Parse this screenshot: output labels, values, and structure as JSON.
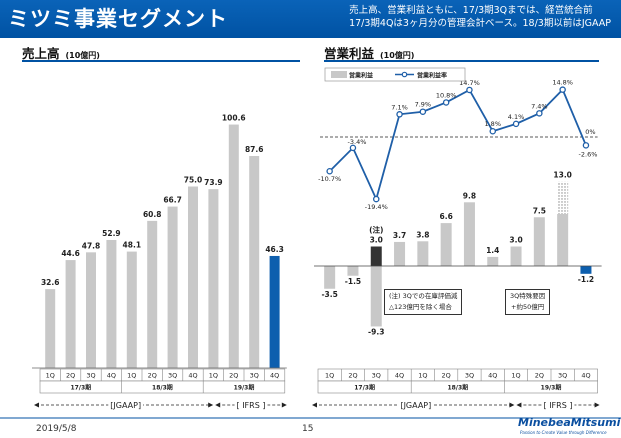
{
  "header": {
    "title": "ミツミ事業セグメント",
    "note_line1": "売上高、営業利益ともに、17/3期3Qまでは、経営統合前",
    "note_line2": "17/3期4Qは3ヶ月分の管理会計ベース。18/3期以前はJGAAP"
  },
  "colors": {
    "header": "#0052a3",
    "gray_bar": "#c8c8c8",
    "blue_bar": "#0d5fae",
    "black_bar": "#333333",
    "line": "#1f5fa8"
  },
  "quarters": [
    "1Q",
    "2Q",
    "3Q",
    "4Q",
    "1Q",
    "2Q",
    "3Q",
    "4Q",
    "1Q",
    "2Q",
    "3Q",
    "4Q"
  ],
  "years": [
    "17/3期",
    "18/3期",
    "19/3期"
  ],
  "standards": {
    "jgaap": "[JGAAP]",
    "ifrs": "[ IFRS ]"
  },
  "chart_data": [
    {
      "type": "bar",
      "title": "売上高",
      "unit": "(10億円)",
      "categories": [
        "17/3 1Q",
        "17/3 2Q",
        "17/3 3Q",
        "17/3 4Q",
        "18/3 1Q",
        "18/3 2Q",
        "18/3 3Q",
        "18/3 4Q",
        "19/3 1Q",
        "19/3 2Q",
        "19/3 3Q",
        "19/3 4Q"
      ],
      "values": [
        32.6,
        44.6,
        47.8,
        52.9,
        48.1,
        60.8,
        66.7,
        75.0,
        73.9,
        100.6,
        87.6,
        46.3
      ],
      "value_labels": [
        "32.6",
        "44.6",
        "47.8",
        "52.9",
        "48.1",
        "60.8",
        "66.7",
        "75.0",
        "73.9",
        "100.6",
        "87.6",
        "46.3"
      ],
      "highlight_index": 11,
      "ylim": [
        0,
        105
      ]
    },
    {
      "type": "bar+line",
      "title": "営業利益",
      "unit": "(10億円)",
      "legend": [
        "営業利益",
        "営業利益率"
      ],
      "categories": [
        "17/3 1Q",
        "17/3 2Q",
        "17/3 3Q",
        "17/3 4Q",
        "18/3 1Q",
        "18/3 2Q",
        "18/3 3Q",
        "18/3 4Q",
        "19/3 1Q",
        "19/3 2Q",
        "19/3 3Q",
        "19/3 4Q"
      ],
      "series": [
        {
          "name": "営業利益",
          "values": [
            -3.5,
            -1.5,
            -9.3,
            3.7,
            3.8,
            6.6,
            9.8,
            1.4,
            3.0,
            7.5,
            13.0,
            -1.2
          ],
          "labels": [
            "-3.5",
            "-1.5",
            "-9.3",
            "3.7",
            "3.8",
            "6.6",
            "9.8",
            "1.4",
            "3.0",
            "7.5",
            "13.0",
            "-1.2"
          ]
        },
        {
          "name": "営業利益率",
          "values": [
            -10.7,
            -3.4,
            -19.4,
            7.1,
            7.9,
            10.8,
            14.7,
            1.8,
            4.1,
            7.4,
            14.8,
            -2.6
          ],
          "labels": [
            "-10.7%",
            "-3.4%",
            "-19.4%",
            "7.1%",
            "7.9%",
            "10.8%",
            "14.7%",
            "1.8%",
            "4.1%",
            "7.4%",
            "14.8%",
            "-2.6%"
          ]
        }
      ],
      "special_q3_17": {
        "value": 3.0,
        "label": "3.0",
        "tag": "(注)"
      },
      "special_extra_19_3q": {
        "value": 5.0
      },
      "zero_label": "0%",
      "notes": {
        "inventory_line1": "(注) 3Qでの在庫評価減",
        "inventory_line2": "△123億円を除く場合",
        "special_line1": "3Q特殊要因",
        "special_line2": "+約50億円"
      },
      "ylim": [
        -10,
        14
      ]
    }
  ],
  "footer": {
    "date": "2019/5/8",
    "page": "15",
    "logo": "MinebeaMitsumi",
    "tagline": "Passion to Create Value through Difference"
  }
}
